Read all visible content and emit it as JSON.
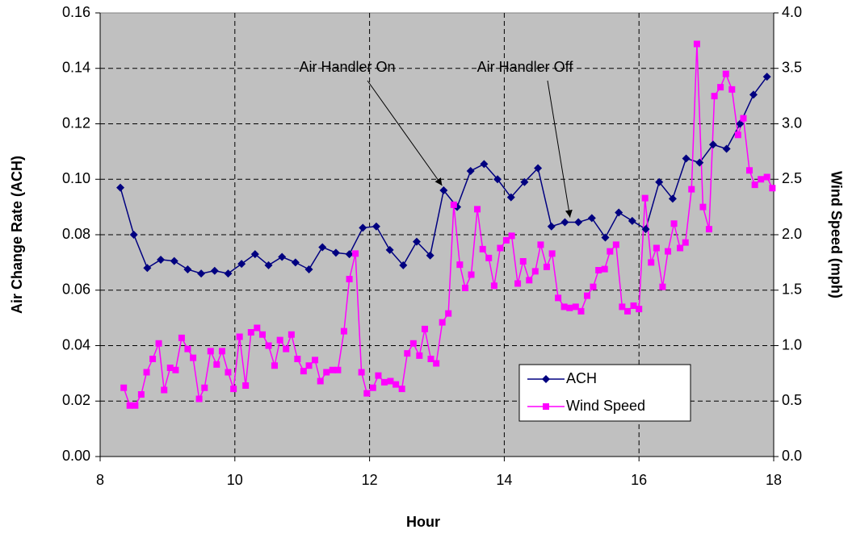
{
  "chart_data": {
    "type": "line",
    "xlabel": "Hour",
    "ylabel": "Air Change Rate (ACH)",
    "y2label": "Wind Speed (mph)",
    "xlim": [
      8,
      18
    ],
    "xticks": [
      8,
      10,
      12,
      14,
      16,
      18
    ],
    "ylim": [
      0,
      0.16
    ],
    "yticks": [
      {
        "value": 0,
        "label": "0.00"
      },
      {
        "value": 0.02,
        "label": "0.02"
      },
      {
        "value": 0.04,
        "label": "0.04"
      },
      {
        "value": 0.06,
        "label": "0.06"
      },
      {
        "value": 0.08,
        "label": "0.08"
      },
      {
        "value": 0.1,
        "label": "0.10"
      },
      {
        "value": 0.12,
        "label": "0.12"
      },
      {
        "value": 0.14,
        "label": "0.14"
      },
      {
        "value": 0.16,
        "label": "0.16"
      }
    ],
    "y2lim": [
      0,
      4
    ],
    "y2ticks": [
      {
        "value": 0,
        "label": "0.0"
      },
      0.5,
      {
        "value": 1,
        "label": "1.0"
      },
      1.5,
      {
        "value": 2,
        "label": "2.0"
      },
      2.5,
      {
        "value": 3,
        "label": "3.0"
      },
      3.5,
      {
        "value": 4,
        "label": "4.0"
      }
    ],
    "grid": true,
    "legend": "lower right",
    "series": [
      {
        "name": "ACH",
        "color": "#000080",
        "marker": "diamond",
        "x": [
          8.3,
          8.5,
          8.7,
          8.9,
          9.1,
          9.3,
          9.5,
          9.7,
          9.9,
          10.1,
          10.3,
          10.5,
          10.7,
          10.9,
          11.1,
          11.3,
          11.5,
          11.7,
          11.9,
          12.1,
          12.3,
          12.5,
          12.7,
          12.9,
          13.1,
          13.3,
          13.5,
          13.7,
          13.9,
          14.1,
          14.3,
          14.5,
          14.7,
          14.9,
          15.1,
          15.3,
          15.5,
          15.7,
          15.9,
          16.1,
          16.3,
          16.5,
          16.7,
          16.9,
          17.1,
          17.3,
          17.5,
          17.7,
          17.9
        ],
        "values": [
          0.097,
          0.08,
          0.068,
          0.071,
          0.0705,
          0.0675,
          0.066,
          0.067,
          0.066,
          0.0695,
          0.073,
          0.069,
          0.072,
          0.07,
          0.0675,
          0.0755,
          0.0735,
          0.073,
          0.0825,
          0.083,
          0.0745,
          0.069,
          0.0775,
          0.0725,
          0.096,
          0.09,
          0.103,
          0.1055,
          0.1,
          0.0935,
          0.099,
          0.104,
          0.083,
          0.0845,
          0.0845,
          0.086,
          0.079,
          0.088,
          0.085,
          0.082,
          0.099,
          0.093,
          0.1075,
          0.106,
          0.1125,
          0.111,
          0.12,
          0.1305,
          0.137
        ]
      },
      {
        "name": "Wind Speed",
        "color": "#ff00ff",
        "marker": "square",
        "axis": "y2",
        "x": [
          8.35,
          8.44,
          8.52,
          8.61,
          8.69,
          8.78,
          8.87,
          8.95,
          9.04,
          9.12,
          9.21,
          9.3,
          9.38,
          9.47,
          9.55,
          9.64,
          9.73,
          9.81,
          9.9,
          9.98,
          10.07,
          10.16,
          10.24,
          10.33,
          10.41,
          10.5,
          10.59,
          10.67,
          10.76,
          10.84,
          10.93,
          11.02,
          11.1,
          11.19,
          11.27,
          11.36,
          11.45,
          11.53,
          11.62,
          11.7,
          11.79,
          11.88,
          11.96,
          12.05,
          12.13,
          12.22,
          12.31,
          12.39,
          12.48,
          12.56,
          12.65,
          12.74,
          12.82,
          12.91,
          12.99,
          13.08,
          13.17,
          13.25,
          13.34,
          13.42,
          13.51,
          13.6,
          13.68,
          13.77,
          13.85,
          13.94,
          14.03,
          14.11,
          14.2,
          14.28,
          14.37,
          14.46,
          14.54,
          14.63,
          14.71,
          14.8,
          14.89,
          14.97,
          15.06,
          15.14,
          15.23,
          15.32,
          15.4,
          15.49,
          15.57,
          15.66,
          15.75,
          15.83,
          15.92,
          16.0,
          16.09,
          16.18,
          16.26,
          16.35,
          16.43,
          16.52,
          16.61,
          16.69,
          16.78,
          16.86,
          16.95,
          17.04,
          17.12,
          17.21,
          17.29,
          17.38,
          17.47,
          17.55,
          17.64,
          17.72,
          17.81,
          17.9,
          17.98
        ],
        "values": [
          0.62,
          0.46,
          0.46,
          0.56,
          0.76,
          0.88,
          1.02,
          0.6,
          0.8,
          0.78,
          1.07,
          0.97,
          0.89,
          0.52,
          0.62,
          0.95,
          0.83,
          0.95,
          0.76,
          0.61,
          1.08,
          0.64,
          1.12,
          1.16,
          1.1,
          1.0,
          0.82,
          1.05,
          0.97,
          1.1,
          0.88,
          0.77,
          0.82,
          0.87,
          0.68,
          0.76,
          0.78,
          0.78,
          1.13,
          1.6,
          1.83,
          0.76,
          0.57,
          0.62,
          0.73,
          0.67,
          0.68,
          0.65,
          0.61,
          0.93,
          1.02,
          0.91,
          1.15,
          0.88,
          0.84,
          1.21,
          1.29,
          2.27,
          1.73,
          1.52,
          1.64,
          2.23,
          1.87,
          1.79,
          1.54,
          1.88,
          1.95,
          1.99,
          1.56,
          1.76,
          1.59,
          1.67,
          1.91,
          1.71,
          1.83,
          1.43,
          1.35,
          1.34,
          1.35,
          1.31,
          1.45,
          1.53,
          1.68,
          1.69,
          1.85,
          1.91,
          1.35,
          1.31,
          1.36,
          1.33,
          2.33,
          1.75,
          1.88,
          1.53,
          1.85,
          2.1,
          1.88,
          1.93,
          2.41,
          3.72,
          2.25,
          2.05,
          3.25,
          3.33,
          3.45,
          3.31,
          2.9,
          3.05,
          2.58,
          2.45,
          2.5,
          2.52,
          2.42
        ]
      }
    ],
    "annotations": [
      {
        "text": "Air Handler On",
        "x": 13.1,
        "y": 0.096
      },
      {
        "text": "Air Handler Off",
        "x": 15.0,
        "y": 0.0845
      }
    ]
  }
}
